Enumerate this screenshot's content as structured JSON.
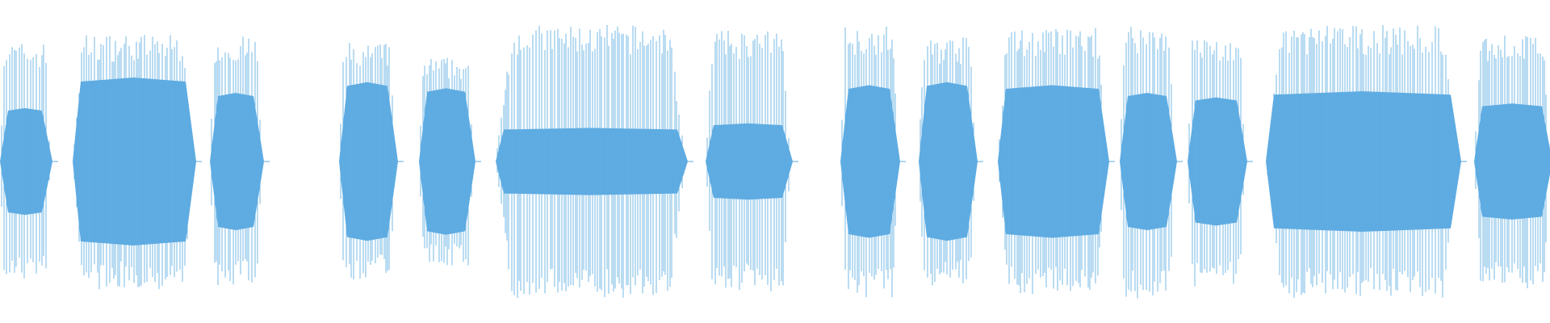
{
  "waveform": {
    "color": "#5eabe2",
    "background": "#ffffff",
    "duration_fraction_ranges": [
      [
        0.0,
        0.0325
      ],
      [
        0.047,
        0.125
      ],
      [
        0.1355,
        0.169
      ],
      [
        0.219,
        0.255
      ],
      [
        0.2705,
        0.305
      ],
      [
        0.32,
        0.442
      ],
      [
        0.455,
        0.51
      ],
      [
        0.542,
        0.579
      ],
      [
        0.5925,
        0.629
      ],
      [
        0.644,
        0.714
      ],
      [
        0.7225,
        0.758
      ],
      [
        0.766,
        0.803
      ],
      [
        0.8165,
        0.941
      ],
      [
        0.951,
        1.0
      ]
    ],
    "peak_levels": [
      0.82,
      0.88,
      0.86,
      0.82,
      0.72,
      0.94,
      0.9,
      0.94,
      0.86,
      0.92,
      0.95,
      0.86,
      0.94,
      0.88
    ],
    "body_levels": [
      0.35,
      0.55,
      0.45,
      0.52,
      0.48,
      0.22,
      0.25,
      0.5,
      0.52,
      0.5,
      0.45,
      0.42,
      0.46,
      0.38
    ]
  }
}
